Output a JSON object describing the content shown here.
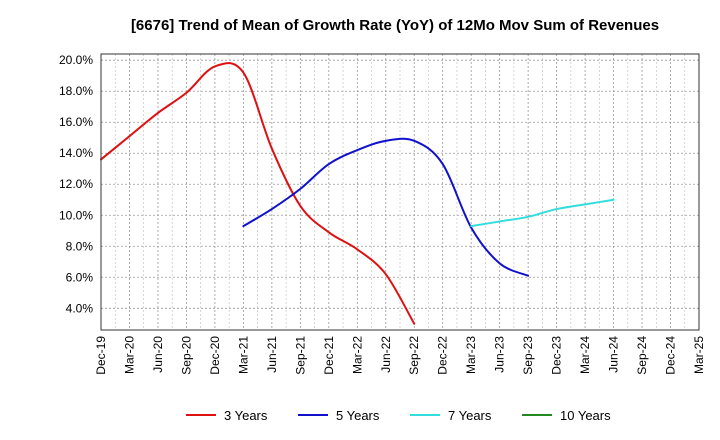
{
  "chart_data": {
    "type": "line",
    "title": "[6676]  Trend of Mean of Growth Rate (YoY) of 12Mo Mov Sum of Revenues",
    "xlabel": "",
    "ylabel": "",
    "x_categories": [
      "Dec-19",
      "Mar-20",
      "Jun-20",
      "Sep-20",
      "Dec-20",
      "Mar-21",
      "Jun-21",
      "Sep-21",
      "Dec-21",
      "Mar-22",
      "Jun-22",
      "Sep-22",
      "Dec-22",
      "Mar-23",
      "Jun-23",
      "Sep-23",
      "Dec-23",
      "Mar-24",
      "Jun-24",
      "Sep-24",
      "Dec-24",
      "Mar-25"
    ],
    "ylim": [
      2.6,
      20.4
    ],
    "y_ticks": [
      4.0,
      6.0,
      8.0,
      10.0,
      12.0,
      14.0,
      16.0,
      18.0,
      20.0
    ],
    "y_tick_labels": [
      "4.0%",
      "6.0%",
      "8.0%",
      "10.0%",
      "12.0%",
      "14.0%",
      "16.0%",
      "18.0%",
      "20.0%"
    ],
    "grid": true,
    "legend_position": "bottom",
    "series": [
      {
        "name": "3 Years",
        "color": "#dd1111",
        "start_index": 0,
        "values": [
          13.6,
          15.1,
          16.6,
          17.9,
          19.6,
          19.2,
          14.3,
          10.6,
          8.9,
          7.8,
          6.2,
          3.0
        ]
      },
      {
        "name": "5 Years",
        "color": "#1111cc",
        "start_index": 5,
        "values": [
          9.3,
          10.4,
          11.7,
          13.3,
          14.2,
          14.8,
          14.8,
          13.3,
          9.2,
          6.9,
          6.1
        ]
      },
      {
        "name": "7 Years",
        "color": "#33dddd",
        "start_index": 13,
        "values": [
          9.3,
          9.6,
          9.9,
          10.4,
          10.7,
          11.0
        ]
      },
      {
        "name": "10 Years",
        "color": "#228822",
        "start_index": 0,
        "values": []
      }
    ]
  }
}
